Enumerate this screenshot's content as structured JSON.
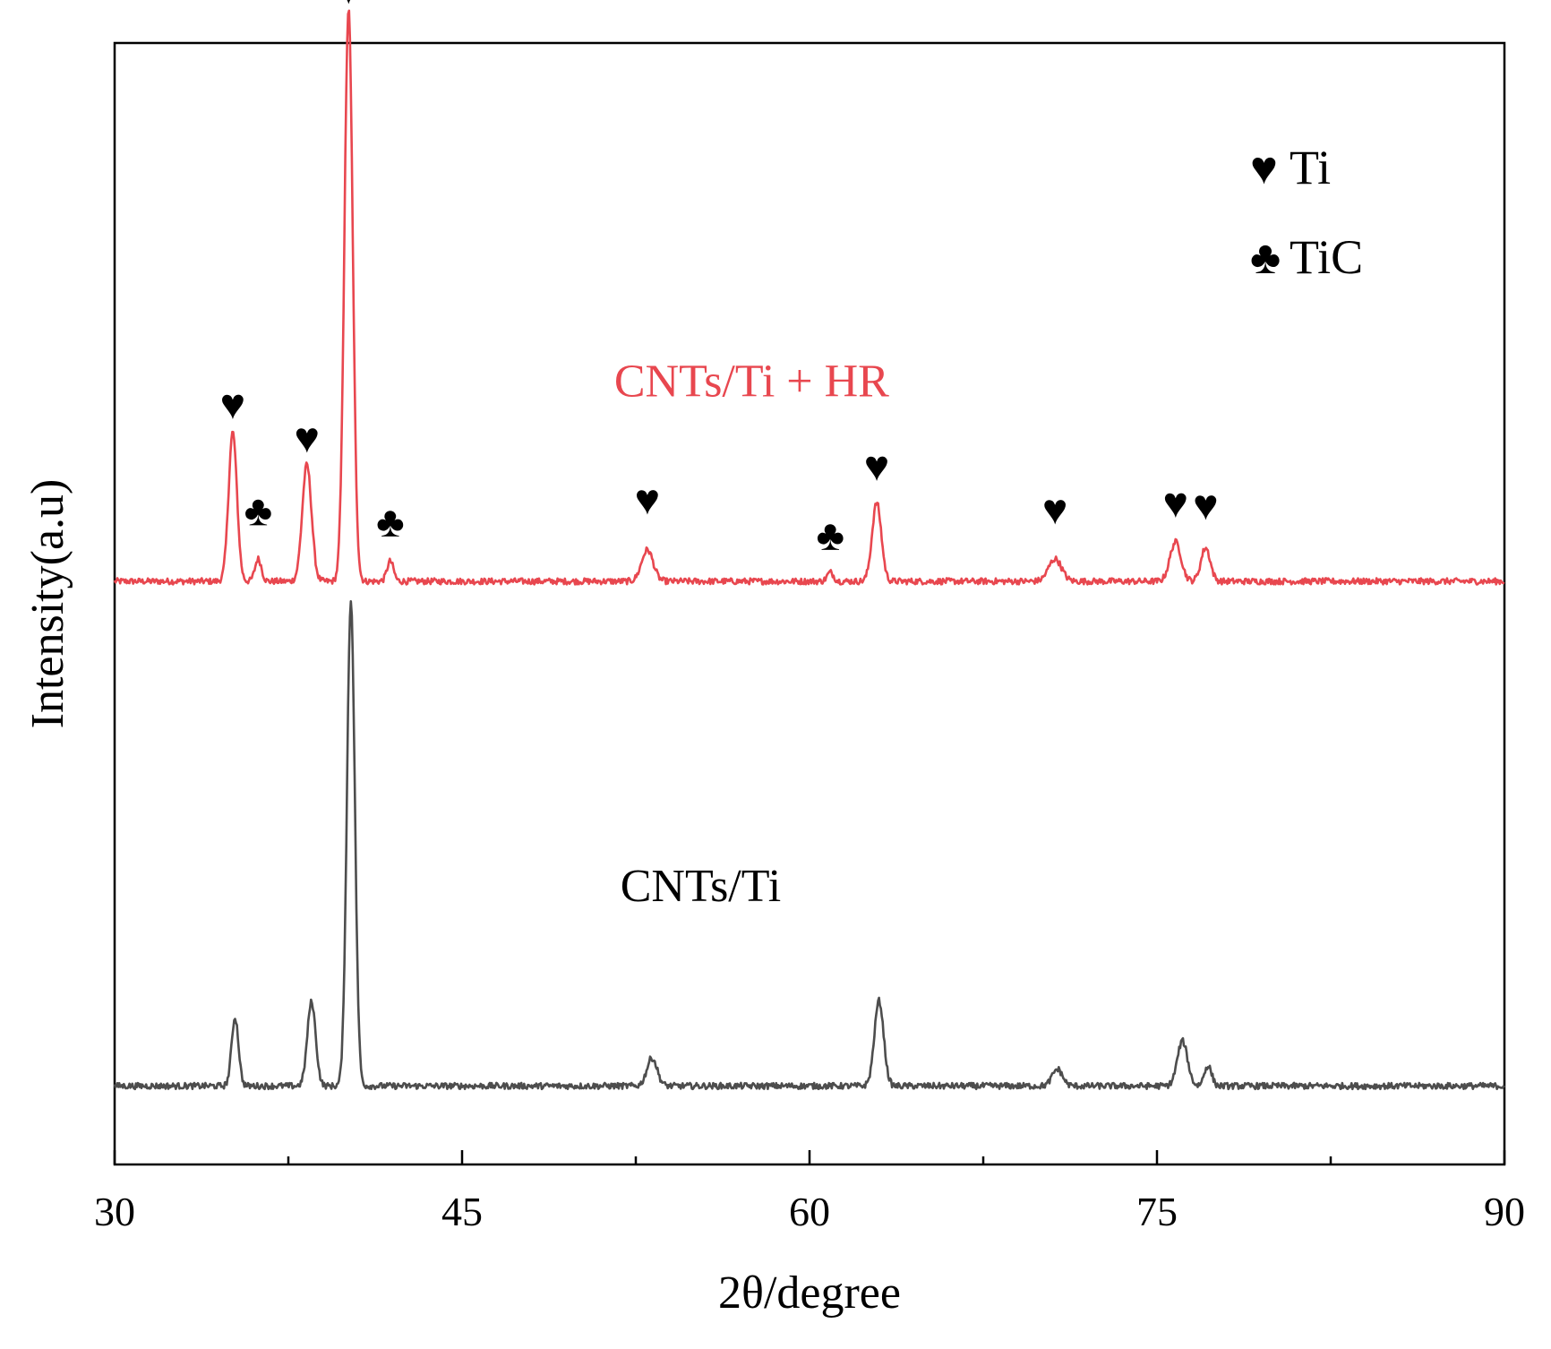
{
  "chart_data": {
    "type": "line",
    "title": "",
    "xlabel": "2θ/degree",
    "ylabel": "Intensity(a.u)",
    "xlim": [
      30,
      90
    ],
    "ylim": [
      0,
      100
    ],
    "x_ticks": [
      30,
      45,
      60,
      75,
      90
    ],
    "x_ticks_labels": [
      "30",
      "45",
      "60",
      "75",
      "90"
    ],
    "x_minor_ticks": [
      37.5,
      52.5,
      67.5,
      82.5
    ],
    "grid": false,
    "series": [
      {
        "name": "CNTs/Ti + HR",
        "color": "#e8474f",
        "baseline": 52.0,
        "peaks": [
          {
            "x": 35.1,
            "height": 13.3,
            "width": 0.18
          },
          {
            "x": 36.2,
            "height": 2.0,
            "width": 0.14
          },
          {
            "x": 38.3,
            "height": 10.4,
            "width": 0.2
          },
          {
            "x": 40.1,
            "height": 51.0,
            "width": 0.18
          },
          {
            "x": 41.9,
            "height": 1.8,
            "width": 0.14
          },
          {
            "x": 53.0,
            "height": 2.8,
            "width": 0.25
          },
          {
            "x": 60.9,
            "height": 0.8,
            "width": 0.14
          },
          {
            "x": 62.9,
            "height": 7.0,
            "width": 0.2
          },
          {
            "x": 70.6,
            "height": 2.0,
            "width": 0.28
          },
          {
            "x": 75.8,
            "height": 3.5,
            "width": 0.24
          },
          {
            "x": 77.1,
            "height": 3.0,
            "width": 0.2
          }
        ]
      },
      {
        "name": "CNTs/Ti",
        "color": "#4d4d4d",
        "baseline": 7.0,
        "peaks": [
          {
            "x": 35.2,
            "height": 6.1,
            "width": 0.15
          },
          {
            "x": 38.5,
            "height": 7.5,
            "width": 0.18
          },
          {
            "x": 40.2,
            "height": 43.2,
            "width": 0.17
          },
          {
            "x": 53.2,
            "height": 2.5,
            "width": 0.22
          },
          {
            "x": 63.0,
            "height": 7.6,
            "width": 0.2
          },
          {
            "x": 70.7,
            "height": 1.5,
            "width": 0.22
          },
          {
            "x": 76.1,
            "height": 4.0,
            "width": 0.22
          },
          {
            "x": 77.2,
            "height": 1.8,
            "width": 0.16
          }
        ]
      }
    ],
    "annotations": [
      {
        "symbol": "♥",
        "x": 35.1,
        "y": 66.5,
        "phase": "Ti"
      },
      {
        "symbol": "♣",
        "x": 36.2,
        "y": 57.0,
        "phase": "TiC"
      },
      {
        "symbol": "♥",
        "x": 38.3,
        "y": 63.5,
        "phase": "Ti"
      },
      {
        "symbol": "♥",
        "x": 40.1,
        "y": 103.5,
        "phase": "Ti"
      },
      {
        "symbol": "♣",
        "x": 41.9,
        "y": 56.0,
        "phase": "TiC"
      },
      {
        "symbol": "♥",
        "x": 53.0,
        "y": 58.0,
        "phase": "Ti"
      },
      {
        "symbol": "♣",
        "x": 60.9,
        "y": 54.8,
        "phase": "TiC"
      },
      {
        "symbol": "♥",
        "x": 62.9,
        "y": 61.0,
        "phase": "Ti"
      },
      {
        "symbol": "♥",
        "x": 70.6,
        "y": 57.1,
        "phase": "Ti"
      },
      {
        "symbol": "♥",
        "x": 75.8,
        "y": 57.7,
        "phase": "Ti"
      },
      {
        "symbol": "♥",
        "x": 77.1,
        "y": 57.5,
        "phase": "Ti"
      }
    ],
    "series_labels": [
      {
        "text": "CNTs/Ti + HR",
        "color": "#e8474f",
        "x": 57.5,
        "y": 68.5
      },
      {
        "text": "CNTs/Ti",
        "color": "#000000",
        "x": 55.3,
        "y": 23.5
      }
    ],
    "legend": {
      "placement": "top-right",
      "entries": [
        {
          "symbol": "♥",
          "label": "Ti"
        },
        {
          "symbol": "♣",
          "label": "TiC"
        }
      ]
    }
  }
}
